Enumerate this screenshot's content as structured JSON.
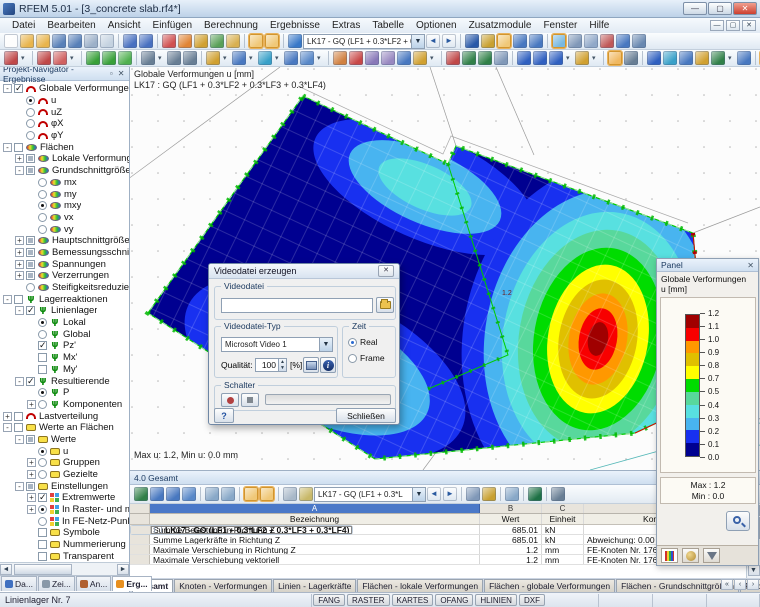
{
  "window": {
    "title": "RFEM 5.01 - [3_concrete slab.rf4*]"
  },
  "menubar": {
    "items": [
      "Datei",
      "Bearbeiten",
      "Ansicht",
      "Einfügen",
      "Berechnung",
      "Ergebnisse",
      "Extras",
      "Tabelle",
      "Optionen",
      "Zusatzmodule",
      "Fenster",
      "Hilfe"
    ]
  },
  "toolbar_main": {
    "combo_value": "LK17 - GQ (LF1 + 0.3*LF2 + 0.3*LF3 + 0",
    "icons1": [
      {
        "t": "ic",
        "c": "#fdfdfd"
      },
      {
        "t": "ic",
        "c": "#e8b44c"
      },
      {
        "t": "ic",
        "c": "#e8b44c"
      },
      {
        "t": "ic",
        "c": "#5880b8"
      },
      {
        "t": "ic",
        "c": "#5880b8"
      },
      {
        "t": "ic",
        "c": "#9cb0c8"
      },
      {
        "t": "ic",
        "c": "#c4d2e0"
      },
      {
        "t": "sep"
      },
      {
        "t": "ic",
        "c": "#4870c0"
      },
      {
        "t": "ic",
        "c": "#4870c0"
      },
      {
        "t": "sep"
      },
      {
        "t": "ic",
        "c": "#d05050"
      },
      {
        "t": "ic",
        "c": "#e08434"
      },
      {
        "t": "ic",
        "c": "#d0a030"
      },
      {
        "t": "ic",
        "c": "#58a058"
      },
      {
        "t": "ic",
        "c": "#d8b050"
      },
      {
        "t": "sep"
      },
      {
        "t": "hl",
        "c": "#f0c878"
      },
      {
        "t": "hl",
        "c": "#f0c878"
      },
      {
        "t": "sep"
      },
      {
        "t": "ic",
        "c": "#3878c8"
      }
    ],
    "icons1b": [
      {
        "t": "sep"
      },
      {
        "t": "ic",
        "c": "#2858a8"
      },
      {
        "t": "ic",
        "c": "#c8a030"
      },
      {
        "t": "hl",
        "c": "#f0c878"
      },
      {
        "t": "ic",
        "c": "#4878c0"
      },
      {
        "t": "ic",
        "c": "#4878c0"
      },
      {
        "t": "sep"
      },
      {
        "t": "hl",
        "c": "#78b8e0"
      },
      {
        "t": "ic",
        "c": "#8098b8"
      },
      {
        "t": "ic",
        "c": "#90a8c8"
      },
      {
        "t": "ic",
        "c": "#c05858"
      },
      {
        "t": "ic",
        "c": "#4878c0"
      },
      {
        "t": "ic",
        "c": "#6888b0"
      }
    ],
    "icons2": [
      {
        "t": "ic",
        "c": "#c04848"
      },
      {
        "t": "drop"
      },
      {
        "t": "sep"
      },
      {
        "t": "ic",
        "c": "#c04848"
      },
      {
        "t": "ic",
        "c": "#d06060"
      },
      {
        "t": "drop"
      },
      {
        "t": "sep"
      },
      {
        "t": "ic",
        "c": "#38a038"
      },
      {
        "t": "ic",
        "c": "#38a038"
      },
      {
        "t": "ic",
        "c": "#50b050"
      },
      {
        "t": "sep"
      },
      {
        "t": "ic",
        "c": "#687e94"
      },
      {
        "t": "drop"
      },
      {
        "t": "ic",
        "c": "#687e94"
      },
      {
        "t": "ic",
        "c": "#687e94"
      },
      {
        "t": "sep"
      },
      {
        "t": "ic",
        "c": "#d0a030"
      },
      {
        "t": "drop"
      },
      {
        "t": "ic",
        "c": "#4878c0"
      },
      {
        "t": "drop"
      },
      {
        "t": "ic",
        "c": "#38a0c8"
      },
      {
        "t": "drop"
      },
      {
        "t": "ic",
        "c": "#4878c0"
      },
      {
        "t": "ic",
        "c": "#5888c8"
      },
      {
        "t": "drop"
      },
      {
        "t": "sep"
      },
      {
        "t": "ic",
        "c": "#d08040"
      },
      {
        "t": "ic",
        "c": "#c84848"
      },
      {
        "t": "ic",
        "c": "#8878b8"
      },
      {
        "t": "ic",
        "c": "#9888c0"
      },
      {
        "t": "ic",
        "c": "#4878c0"
      },
      {
        "t": "ic",
        "c": "#d0a030"
      },
      {
        "t": "drop"
      },
      {
        "t": "sep"
      },
      {
        "t": "ic",
        "c": "#c04848"
      },
      {
        "t": "ic",
        "c": "#308048"
      },
      {
        "t": "ic",
        "c": "#308048"
      },
      {
        "t": "ic",
        "c": "#8098b8"
      },
      {
        "t": "sep"
      },
      {
        "t": "ic",
        "c": "#3060c0"
      },
      {
        "t": "ic",
        "c": "#3060c0"
      },
      {
        "t": "ic",
        "c": "#3060c0"
      },
      {
        "t": "drop"
      },
      {
        "t": "ic",
        "c": "#d0a030"
      },
      {
        "t": "drop"
      },
      {
        "t": "sep"
      },
      {
        "t": "hl",
        "c": "#f0b860"
      },
      {
        "t": "ic",
        "c": "#687e94"
      },
      {
        "t": "sep"
      },
      {
        "t": "ic",
        "c": "#3060c0"
      },
      {
        "t": "ic",
        "c": "#38a0c8"
      },
      {
        "t": "ic",
        "c": "#4878c0"
      },
      {
        "t": "ic",
        "c": "#d0a030"
      },
      {
        "t": "ic",
        "c": "#308048"
      },
      {
        "t": "drop"
      },
      {
        "t": "ic",
        "c": "#4878c0"
      },
      {
        "t": "sep"
      },
      {
        "t": "hl",
        "c": "#f0b860"
      },
      {
        "t": "ic",
        "c": "#38a0c8"
      },
      {
        "t": "drop"
      },
      {
        "t": "ic",
        "c": "#50b050"
      }
    ]
  },
  "navigator": {
    "title": "Projekt-Navigator - Ergebnisse",
    "tree": [
      {
        "label": "Globale Verformungen",
        "level": 0,
        "exp": "em",
        "ctl": "c1",
        "icon": "arc"
      },
      {
        "label": "u",
        "level": 1,
        "exp": "e0",
        "ctl": "r1",
        "icon": "arc"
      },
      {
        "label": "uZ",
        "level": 1,
        "exp": "e0",
        "ctl": "r0",
        "icon": "arc"
      },
      {
        "label": "φX",
        "level": 1,
        "exp": "e0",
        "ctl": "r0",
        "icon": "arc"
      },
      {
        "label": "φY",
        "level": 1,
        "exp": "e0",
        "ctl": "r0",
        "icon": "arc"
      },
      {
        "label": "Flächen",
        "level": 0,
        "exp": "em",
        "ctl": "c0",
        "icon": "surf"
      },
      {
        "label": "Lokale Verformungen",
        "level": 1,
        "exp": "ep",
        "ctl": "cp",
        "icon": "surf"
      },
      {
        "label": "Grundschnittgrößen",
        "level": 1,
        "exp": "em",
        "ctl": "cp",
        "icon": "surf"
      },
      {
        "label": "mx",
        "level": 2,
        "exp": "e0",
        "ctl": "r0",
        "icon": "surf"
      },
      {
        "label": "my",
        "level": 2,
        "exp": "e0",
        "ctl": "r0",
        "icon": "surf"
      },
      {
        "label": "mxy",
        "level": 2,
        "exp": "e0",
        "ctl": "r1",
        "icon": "surf"
      },
      {
        "label": "vx",
        "level": 2,
        "exp": "e0",
        "ctl": "r0",
        "icon": "surf"
      },
      {
        "label": "vy",
        "level": 2,
        "exp": "e0",
        "ctl": "r0",
        "icon": "surf"
      },
      {
        "label": "Hauptschnittgrößen",
        "level": 1,
        "exp": "ep",
        "ctl": "cp",
        "icon": "surf"
      },
      {
        "label": "Bemessungsschnittgrößen",
        "level": 1,
        "exp": "ep",
        "ctl": "cp",
        "icon": "surf"
      },
      {
        "label": "Spannungen",
        "level": 1,
        "exp": "ep",
        "ctl": "cp",
        "icon": "surf"
      },
      {
        "label": "Verzerrungen",
        "level": 1,
        "exp": "ep",
        "ctl": "cp",
        "icon": "surf"
      },
      {
        "label": "Steifigkeitsreduzierung",
        "level": 1,
        "exp": "e0",
        "ctl": "r0",
        "icon": "surf"
      },
      {
        "label": "Lagerreaktionen",
        "level": 0,
        "exp": "em",
        "ctl": "c0",
        "icon": "sup"
      },
      {
        "label": "Linienlager",
        "level": 1,
        "exp": "em",
        "ctl": "c1",
        "icon": "sup"
      },
      {
        "label": "Lokal",
        "level": 2,
        "exp": "e0",
        "ctl": "r1",
        "icon": "sup"
      },
      {
        "label": "Global",
        "level": 2,
        "exp": "e0",
        "ctl": "r0",
        "icon": "sup"
      },
      {
        "label": "Pz'",
        "level": 2,
        "exp": "e0",
        "ctl": "c1",
        "icon": "sup"
      },
      {
        "label": "Mx'",
        "level": 2,
        "exp": "e0",
        "ctl": "c0",
        "icon": "sup"
      },
      {
        "label": "My'",
        "level": 2,
        "exp": "e0",
        "ctl": "c0",
        "icon": "sup"
      },
      {
        "label": "Resultierende",
        "level": 1,
        "exp": "em",
        "ctl": "c1",
        "icon": "sup"
      },
      {
        "label": "P",
        "level": 2,
        "exp": "e0",
        "ctl": "r1",
        "icon": "sup"
      },
      {
        "label": "Komponenten",
        "level": 2,
        "exp": "ep",
        "ctl": "r0",
        "icon": "sup"
      },
      {
        "label": "Lastverteilung",
        "level": 0,
        "exp": "ep",
        "ctl": "c0",
        "icon": "arc"
      },
      {
        "label": "Werte an Flächen",
        "level": 0,
        "exp": "em",
        "ctl": "c0",
        "icon": "bub"
      },
      {
        "label": "Werte",
        "level": 1,
        "exp": "em",
        "ctl": "cp",
        "icon": "bub"
      },
      {
        "label": "u",
        "level": 2,
        "exp": "e0",
        "ctl": "r1",
        "icon": "bub"
      },
      {
        "label": "Gruppen",
        "level": 2,
        "exp": "ep",
        "ctl": "r0",
        "icon": "bub"
      },
      {
        "label": "Gezielte",
        "level": 2,
        "exp": "ep",
        "ctl": "r0",
        "icon": "bub"
      },
      {
        "label": "Einstellungen",
        "level": 1,
        "exp": "em",
        "ctl": "cp",
        "icon": "bub"
      },
      {
        "label": "Extremwerte",
        "level": 2,
        "exp": "ep",
        "ctl": "c1",
        "icon": "quad"
      },
      {
        "label": "In Raster- und manuell",
        "level": 2,
        "exp": "ep",
        "ctl": "r1",
        "icon": "quad"
      },
      {
        "label": "In FE-Netz-Punkten",
        "level": 2,
        "exp": "e0",
        "ctl": "r0",
        "icon": "quad"
      },
      {
        "label": "Symbole",
        "level": 2,
        "exp": "e0",
        "ctl": "c0",
        "icon": "bub"
      },
      {
        "label": "Nummerierung",
        "level": 2,
        "exp": "e0",
        "ctl": "c0",
        "icon": "bub"
      },
      {
        "label": "Transparent",
        "level": 2,
        "exp": "e0",
        "ctl": "c0",
        "icon": "bub"
      }
    ],
    "tabs": [
      {
        "label": "Da...",
        "c": "#4070c0",
        "s": ""
      },
      {
        "label": "Zei...",
        "c": "#8898a8",
        "s": ""
      },
      {
        "label": "An...",
        "c": "#b06030",
        "s": ""
      },
      {
        "label": "Erg...",
        "c": "#e89020",
        "s": "on"
      }
    ]
  },
  "viewport": {
    "header_line1": "Globale Verformungen u [mm]",
    "header_line2": "LK17 : GQ  (LF1 + 0.3*LF2 + 0.3*LF3 + 0.3*LF4)",
    "maxmin_note": "Max u: 1.2, Min u: 0.0 mm",
    "contour_label": "1.2",
    "axis_label": "z"
  },
  "dialog": {
    "title": "Videodatei erzeugen",
    "group_file": "Videodatei",
    "group_type": "Videodatei-Typ",
    "group_time": "Zeit",
    "group_switch": "Schalter",
    "type_value": "Microsoft Video 1",
    "quality_label": "Qualität:",
    "quality_value": "100",
    "quality_unit": "[%]",
    "radio_real": "Real",
    "radio_frame": "Frame",
    "close_label": "Schließen"
  },
  "panel": {
    "title": "Panel",
    "target_line1": "Globale Verformungen",
    "target_line2": "u [mm]",
    "legend_colors": [
      "#a00000",
      "#f80000",
      "#ff9800",
      "#e0c000",
      "#ffff00",
      "#00dc00",
      "#58d89c",
      "#58e0e0",
      "#48b4f0",
      "#1830f0",
      "#000090"
    ],
    "legend_ticks": [
      "1.2",
      "1.1",
      "1.0",
      "0.9",
      "0.8",
      "0.7",
      "0.5",
      "0.4",
      "0.3",
      "0.2",
      "0.1",
      "0.0"
    ],
    "max_line": "Max :   1.2",
    "min_line": "Min  :   0.0"
  },
  "table": {
    "window_title": "4.0 Gesamt",
    "combo_value": "LK17 - GQ (LF1 + 0.3*L",
    "icons_pre": [
      {
        "t": "ic",
        "c": "#308048"
      },
      {
        "t": "ic",
        "c": "#4878c0"
      },
      {
        "t": "ic",
        "c": "#4878c0"
      },
      {
        "t": "ic",
        "c": "#5888c8"
      },
      {
        "t": "sep"
      },
      {
        "t": "ic",
        "c": "#88a8c8"
      },
      {
        "t": "ic",
        "c": "#88a8c8"
      },
      {
        "t": "sep"
      },
      {
        "t": "hl",
        "c": "#f0c878"
      },
      {
        "t": "hl",
        "c": "#f0c878"
      },
      {
        "t": "sep"
      },
      {
        "t": "ic",
        "c": "#a8b8c8"
      },
      {
        "t": "ic",
        "c": "#c8b868"
      }
    ],
    "icons_post": [
      {
        "t": "sep"
      },
      {
        "t": "ic",
        "c": "#8098b8"
      },
      {
        "t": "ic",
        "c": "#c8a030"
      },
      {
        "t": "sep"
      },
      {
        "t": "ic",
        "c": "#88a8c8"
      },
      {
        "t": "sep"
      },
      {
        "t": "ic",
        "c": "#1e7145"
      },
      {
        "t": "sep"
      },
      {
        "t": "ic",
        "c": "#687e94"
      }
    ],
    "col_letters": [
      "A",
      "B",
      "C",
      "D"
    ],
    "headers": [
      "Bezeichnung",
      "Wert",
      "Einheit",
      "Kommentar"
    ],
    "rows": [
      {
        "type": "group",
        "bezeichnung": "LK17 - GQ  (LF1 + 0.3*LF2 + 0.3*LF3 + 0.3*LF4)",
        "wert": "",
        "einheit": "",
        "kommentar": ""
      },
      {
        "type": "data",
        "bezeichnung": "Summe Belastung in Richtung Z",
        "wert": "685.01",
        "einheit": "kN",
        "kommentar": ""
      },
      {
        "type": "data",
        "bezeichnung": "Summe Lagerkräfte in Richtung Z",
        "wert": "685.01",
        "einheit": "kN",
        "kommentar": "Abweichung:  0.00 %"
      },
      {
        "type": "data",
        "bezeichnung": "Maximale Verschiebung in Richtung Z",
        "wert": "1.2",
        "einheit": "mm",
        "kommentar": "FE-Knoten Nr. 176  (X: 8.000,  Y: -5.500,  Z: 0.000 m)"
      },
      {
        "type": "data",
        "bezeichnung": "Maximale Verschiebung vektoriell",
        "wert": "1.2",
        "einheit": "mm",
        "kommentar": "FE-Knoten Nr. 176  (X: 8.000,  Y: -5.500,  Z: 0.000 m)"
      }
    ]
  },
  "bottom_tabs": {
    "tabs": [
      {
        "label": "Gesamt",
        "s": "on"
      },
      {
        "label": "Knoten - Verformungen",
        "s": ""
      },
      {
        "label": "Linien - Lagerkräfte",
        "s": ""
      },
      {
        "label": "Flächen - lokale Verformungen",
        "s": ""
      },
      {
        "label": "Flächen - globale Verformungen",
        "s": ""
      },
      {
        "label": "Flächen - Grundschnittgrößen",
        "s": ""
      },
      {
        "label": "Flächen - Hauptschnittgrößen",
        "s": ""
      }
    ]
  },
  "statusbar": {
    "left": "Linienlager Nr. 7",
    "toggles": [
      "FANG",
      "RASTER",
      "KARTES",
      "OFANG",
      "HLINIEN",
      "DXF"
    ]
  }
}
